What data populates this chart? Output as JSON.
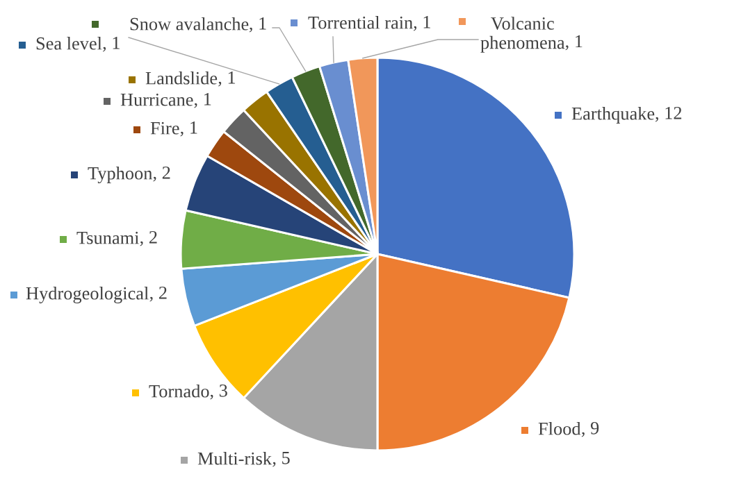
{
  "chart_data": {
    "type": "pie",
    "categories": [
      "Earthquake",
      "Flood",
      "Multi-risk",
      "Tornado",
      "Hydrogeological",
      "Tsunami",
      "Typhoon",
      "Fire",
      "Hurricane",
      "Landslide",
      "Sea level",
      "Snow avalanche",
      "Torrential rain",
      "Volcanic phenomena"
    ],
    "values": [
      12,
      9,
      5,
      3,
      2,
      2,
      2,
      1,
      1,
      1,
      1,
      1,
      1,
      1
    ],
    "colors": [
      "#4472c4",
      "#ed7d31",
      "#a5a5a5",
      "#ffc000",
      "#5b9bd5",
      "#70ad47",
      "#264478",
      "#9e480e",
      "#636363",
      "#997300",
      "#255e91",
      "#43682b",
      "#698ed0",
      "#f1975a"
    ],
    "value_labels": [
      ", 12",
      ", 9",
      ", 5",
      ", 3",
      ", 2",
      ", 2",
      ", 2",
      ", 1",
      ", 1",
      ", 1",
      ", 1",
      ", 1",
      ", 1",
      ", 1"
    ],
    "legend": "left"
  }
}
